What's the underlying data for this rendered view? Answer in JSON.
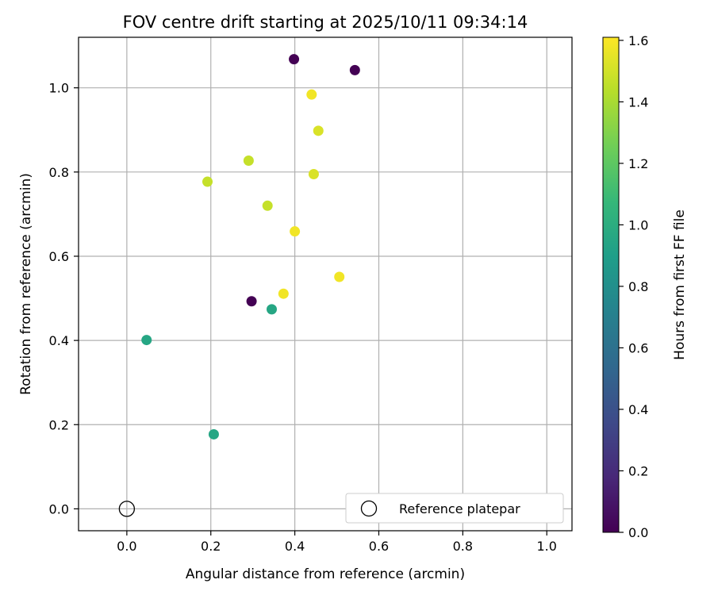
{
  "chart_data": {
    "type": "scatter",
    "title": "FOV centre drift starting at 2025/10/11 09:34:14",
    "xlabel": "Angular distance from reference (arcmin)",
    "ylabel": "Rotation from reference (arcmin)",
    "xlim": [
      -0.115,
      1.06
    ],
    "ylim": [
      -0.052,
      1.12
    ],
    "xticks": [
      0.0,
      0.2,
      0.4,
      0.6,
      0.8,
      1.0
    ],
    "yticks": [
      0.0,
      0.2,
      0.4,
      0.6,
      0.8,
      1.0
    ],
    "xtick_labels": [
      "0.0",
      "0.2",
      "0.4",
      "0.6",
      "0.8",
      "1.0"
    ],
    "ytick_labels": [
      "0.0",
      "0.2",
      "0.4",
      "0.6",
      "0.8",
      "1.0"
    ],
    "grid": true,
    "colorbar": {
      "label": "Hours from first FF file",
      "min": 0.0,
      "max": 1.61,
      "ticks": [
        0.0,
        0.2,
        0.4,
        0.6,
        0.8,
        1.0,
        1.2,
        1.4,
        1.6
      ],
      "tick_labels": [
        "0.0",
        "0.2",
        "0.4",
        "0.6",
        "0.8",
        "1.0",
        "1.2",
        "1.4",
        "1.6"
      ],
      "colormap": "viridis"
    },
    "points": [
      {
        "x": 0.398,
        "y": 1.068,
        "hours": 0.0
      },
      {
        "x": 0.543,
        "y": 1.042,
        "hours": 0.0
      },
      {
        "x": 0.297,
        "y": 0.493,
        "hours": 0.0
      },
      {
        "x": 0.345,
        "y": 0.474,
        "hours": 0.95
      },
      {
        "x": 0.047,
        "y": 0.401,
        "hours": 0.95
      },
      {
        "x": 0.207,
        "y": 0.177,
        "hours": 0.95
      },
      {
        "x": 0.192,
        "y": 0.777,
        "hours": 1.47
      },
      {
        "x": 0.29,
        "y": 0.827,
        "hours": 1.47
      },
      {
        "x": 0.335,
        "y": 0.72,
        "hours": 1.47
      },
      {
        "x": 0.456,
        "y": 0.898,
        "hours": 1.52
      },
      {
        "x": 0.445,
        "y": 0.795,
        "hours": 1.52
      },
      {
        "x": 0.44,
        "y": 0.984,
        "hours": 1.58
      },
      {
        "x": 0.4,
        "y": 0.659,
        "hours": 1.58
      },
      {
        "x": 0.373,
        "y": 0.511,
        "hours": 1.58
      },
      {
        "x": 0.506,
        "y": 0.551,
        "hours": 1.58
      }
    ],
    "reference": {
      "x": 0.0,
      "y": 0.0
    },
    "legend": {
      "label": "Reference platepar",
      "location": "lower-right"
    }
  },
  "colors": {
    "axis": "#000000",
    "grid": "#b0b0b0",
    "legend_border": "#cccccc"
  }
}
